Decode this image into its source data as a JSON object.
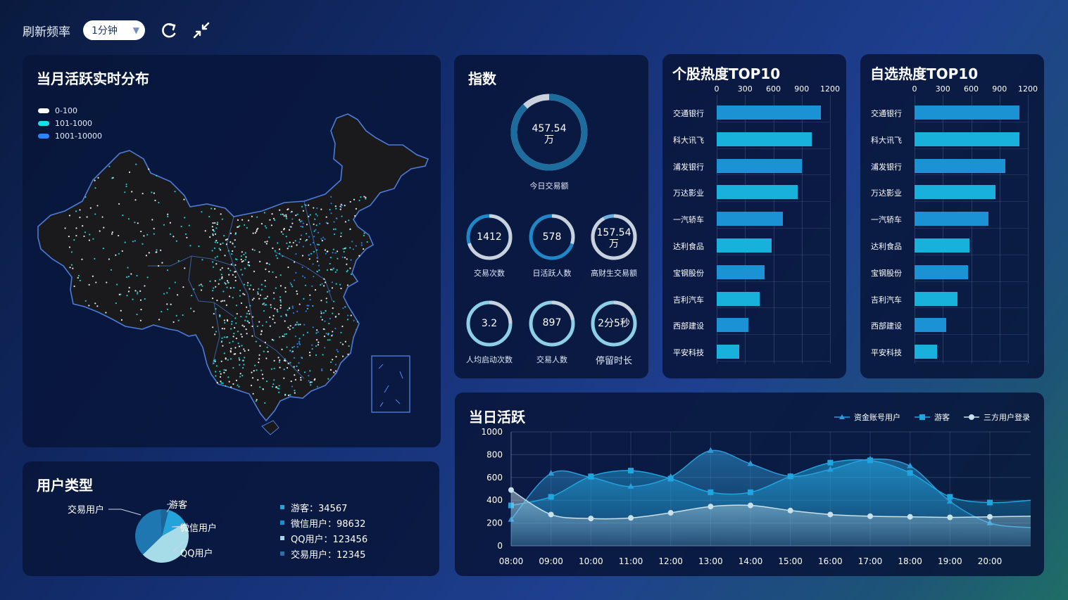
{
  "topbar": {
    "refresh_label": "刷新频率",
    "refresh_value": "1分钟",
    "icons": [
      "refresh-icon",
      "collapse-icon"
    ]
  },
  "map_panel": {
    "title": "当月活跃实时分布",
    "legend": [
      {
        "label": "0-100",
        "color": "#ffffff"
      },
      {
        "label": "101-1000",
        "color": "#19e0e4"
      },
      {
        "label": "1001-10000",
        "color": "#2a86ff"
      }
    ]
  },
  "index_panel": {
    "title": "指数",
    "main": {
      "value": "457.54\n万",
      "caption": "今日交易额",
      "fraction": 0.88
    },
    "rings": [
      {
        "value": "1412",
        "caption": "交易次数",
        "fraction": 0.7
      },
      {
        "value": "578",
        "caption": "日活跃人数",
        "fraction": 0.3
      },
      {
        "value": "157.54\n万",
        "caption": "高财生交易额",
        "fraction": 0.92
      },
      {
        "value": "3.2",
        "caption": "人均启动次数",
        "fraction": 0.25
      },
      {
        "value": "897",
        "caption": "交易人数",
        "fraction": 0.22
      },
      {
        "value": "2分5秒",
        "caption": "停留时长",
        "fraction": 0.18
      }
    ]
  },
  "stock_top10": {
    "title": "个股热度TOP10",
    "ticks": [
      "0",
      "300",
      "600",
      "900",
      "1200"
    ],
    "max": 1200,
    "items": [
      {
        "name": "交通银行",
        "value": 1100
      },
      {
        "name": "科大讯飞",
        "value": 1005
      },
      {
        "name": "浦发银行",
        "value": 900
      },
      {
        "name": "万达影业",
        "value": 860
      },
      {
        "name": "一汽轿车",
        "value": 700
      },
      {
        "name": "达利食品",
        "value": 580
      },
      {
        "name": "宝钢股份",
        "value": 510
      },
      {
        "name": "吉利汽车",
        "value": 455
      },
      {
        "name": "西部建设",
        "value": 335
      },
      {
        "name": "平安科技",
        "value": 240
      }
    ]
  },
  "watch_top10": {
    "title": "自选热度TOP10",
    "ticks": [
      "0",
      "300",
      "600",
      "900",
      "1200"
    ],
    "max": 1200,
    "items": [
      {
        "name": "交通银行",
        "value": 1250
      },
      {
        "name": "科大讯飞",
        "value": 1200
      },
      {
        "name": "浦发银行",
        "value": 960
      },
      {
        "name": "万达影业",
        "value": 860
      },
      {
        "name": "一汽轿车",
        "value": 780
      },
      {
        "name": "达利食品",
        "value": 580
      },
      {
        "name": "宝钢股份",
        "value": 570
      },
      {
        "name": "吉利汽车",
        "value": 455
      },
      {
        "name": "西部建设",
        "value": 335
      },
      {
        "name": "平安科技",
        "value": 240
      }
    ]
  },
  "user_types": {
    "title": "用户类型",
    "slices": [
      {
        "name": "游客",
        "value": 34567,
        "label": "游客：34567",
        "color": "#22a3d9"
      },
      {
        "name": "微信用户",
        "value": 98632,
        "label": "微信用户：98632",
        "color": "#1b6fa6"
      },
      {
        "name": "QQ用户",
        "value": 123456,
        "label": "QQ用户：123456",
        "color": "#9fd6e6"
      },
      {
        "name": "交易用户",
        "value": 12345,
        "label": "交易用户：12345",
        "color": "#1e6496"
      }
    ]
  },
  "daily_active": {
    "title": "当日活跃",
    "legend": [
      "资金账号用户",
      "游客",
      "三方用户登录"
    ]
  },
  "chart_data": {
    "type": "area",
    "x": [
      "08:00",
      "09:00",
      "10:00",
      "11:00",
      "12:00",
      "13:00",
      "14:00",
      "15:00",
      "16:00",
      "17:00",
      "18:00",
      "19:00",
      "20:00"
    ],
    "ylim": [
      0,
      1000
    ],
    "yticks": [
      0,
      200,
      400,
      600,
      800,
      1000
    ],
    "series": [
      {
        "name": "资金账号用户",
        "marker": "triangle",
        "color": "#2e9ad8",
        "values": [
          230,
          635,
          600,
          520,
          605,
          835,
          720,
          610,
          670,
          760,
          700,
          390,
          200
        ]
      },
      {
        "name": "游客",
        "marker": "square",
        "color": "#1fa6df",
        "values": [
          355,
          430,
          610,
          660,
          590,
          470,
          470,
          610,
          730,
          750,
          640,
          430,
          380
        ]
      },
      {
        "name": "三方用户登录",
        "marker": "circle",
        "color": "#c9e1ea",
        "values": [
          490,
          275,
          240,
          245,
          290,
          345,
          355,
          310,
          275,
          260,
          255,
          250,
          255
        ]
      }
    ]
  }
}
